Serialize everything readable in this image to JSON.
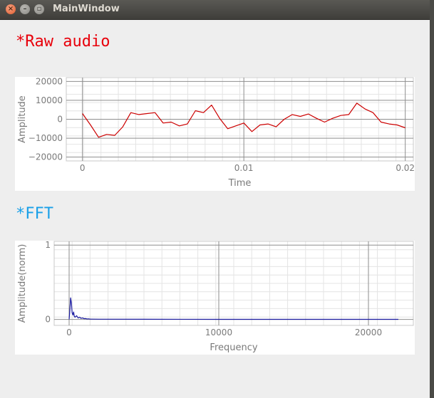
{
  "window": {
    "title": "MainWindow",
    "close_glyph": "×",
    "minimize_glyph": "–",
    "maximize_glyph": "▫"
  },
  "sections": {
    "raw_heading": "*Raw audio",
    "fft_heading": "*FFT"
  },
  "colors": {
    "raw_heading": "#e8000b",
    "fft_heading": "#1aa0e8",
    "raw_series": "#cc0000",
    "fft_series": "#1a1aa0"
  },
  "chart_data": [
    {
      "type": "line",
      "xlabel": "Time",
      "ylabel": "Amplitude",
      "xlim": [
        -0.001,
        0.0205
      ],
      "ylim": [
        -22000,
        22000
      ],
      "xticks": [
        0,
        0.01,
        0.02
      ],
      "xtick_labels": [
        "0",
        "0.01",
        "0.02"
      ],
      "yticks": [
        20000,
        10000,
        0,
        -10000,
        -20000
      ],
      "ytick_labels": [
        "20000",
        "10000",
        "0",
        "−10000",
        "−20000"
      ],
      "grid": true,
      "series": [
        {
          "x": [
            0,
            0.0005,
            0.001,
            0.0015,
            0.002,
            0.0025,
            0.003,
            0.0035,
            0.004,
            0.0045,
            0.005,
            0.0055,
            0.006,
            0.0065,
            0.007,
            0.0075,
            0.008,
            0.0085,
            0.009,
            0.0095,
            0.01,
            0.0105,
            0.011,
            0.0115,
            0.012,
            0.0125,
            0.013,
            0.0135,
            0.014,
            0.0145,
            0.015,
            0.0155,
            0.016,
            0.0165,
            0.017,
            0.0175,
            0.018,
            0.0185,
            0.019,
            0.0195,
            0.02
          ],
          "y": [
            3000,
            -3000,
            -9500,
            -8000,
            -8500,
            -4000,
            3500,
            2500,
            3000,
            3500,
            -2000,
            -1500,
            -3500,
            -2500,
            4500,
            3500,
            7500,
            500,
            -5000,
            -3500,
            -2000,
            -6500,
            -3000,
            -2500,
            -4000,
            0,
            2500,
            1500,
            2800,
            500,
            -1500,
            500,
            2000,
            2500,
            8500,
            5500,
            3500,
            -1500,
            -2500,
            -3000,
            -4500
          ]
        }
      ]
    },
    {
      "type": "line",
      "xlabel": "Frequency",
      "ylabel": "Amplitude(norm)",
      "xlim": [
        -1000,
        23000
      ],
      "ylim": [
        -0.08,
        1.05
      ],
      "xticks": [
        0,
        10000,
        20000
      ],
      "xtick_labels": [
        "0",
        "10000",
        "20000"
      ],
      "yticks": [
        1,
        0
      ],
      "ytick_labels": [
        "1",
        "0"
      ],
      "grid": true,
      "series": [
        {
          "x": [
            0,
            50,
            100,
            150,
            200,
            250,
            300,
            350,
            400,
            500,
            600,
            700,
            800,
            900,
            1000,
            1100,
            1200,
            1300,
            1400,
            2000,
            5000,
            10000,
            15000,
            20000,
            22000
          ],
          "y": [
            0.0,
            0.12,
            0.29,
            0.22,
            0.09,
            0.06,
            0.1,
            0.04,
            0.03,
            0.05,
            0.02,
            0.03,
            0.015,
            0.02,
            0.01,
            0.012,
            0.006,
            0.008,
            0.004,
            0.003,
            0.002,
            0.001,
            0.001,
            0.001,
            0.001
          ]
        }
      ]
    }
  ]
}
